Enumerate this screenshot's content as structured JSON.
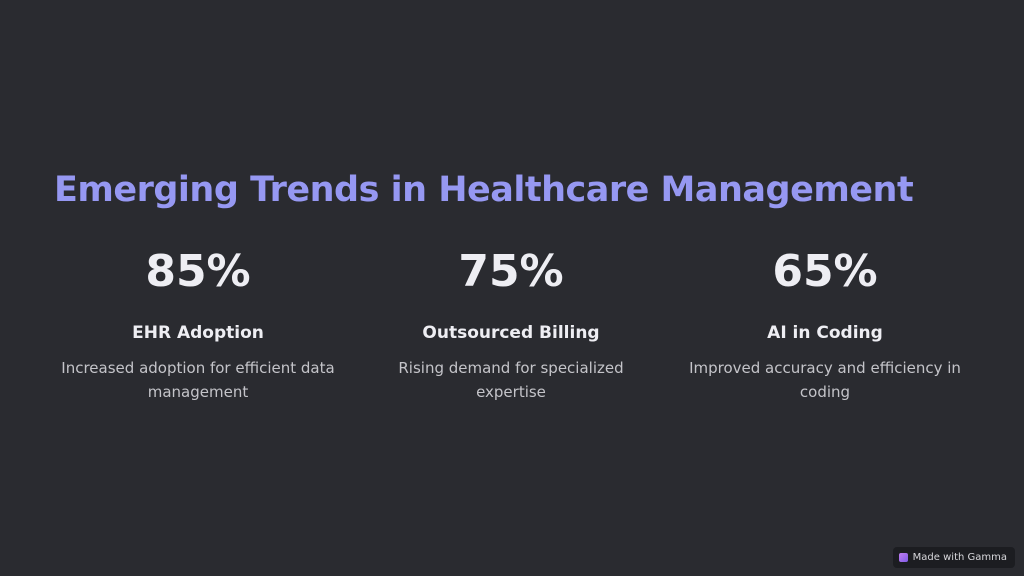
{
  "header": {
    "title": "Emerging Trends in Healthcare Management"
  },
  "stats": [
    {
      "value": "85%",
      "label": "EHR Adoption",
      "description": "Increased adoption for efficient data management"
    },
    {
      "value": "75%",
      "label": "Outsourced Billing",
      "description": "Rising demand for specialized expertise"
    },
    {
      "value": "65%",
      "label": "AI in Coding",
      "description": "Improved accuracy and efficiency in coding"
    }
  ],
  "badge": {
    "text": "Made with Gamma"
  }
}
